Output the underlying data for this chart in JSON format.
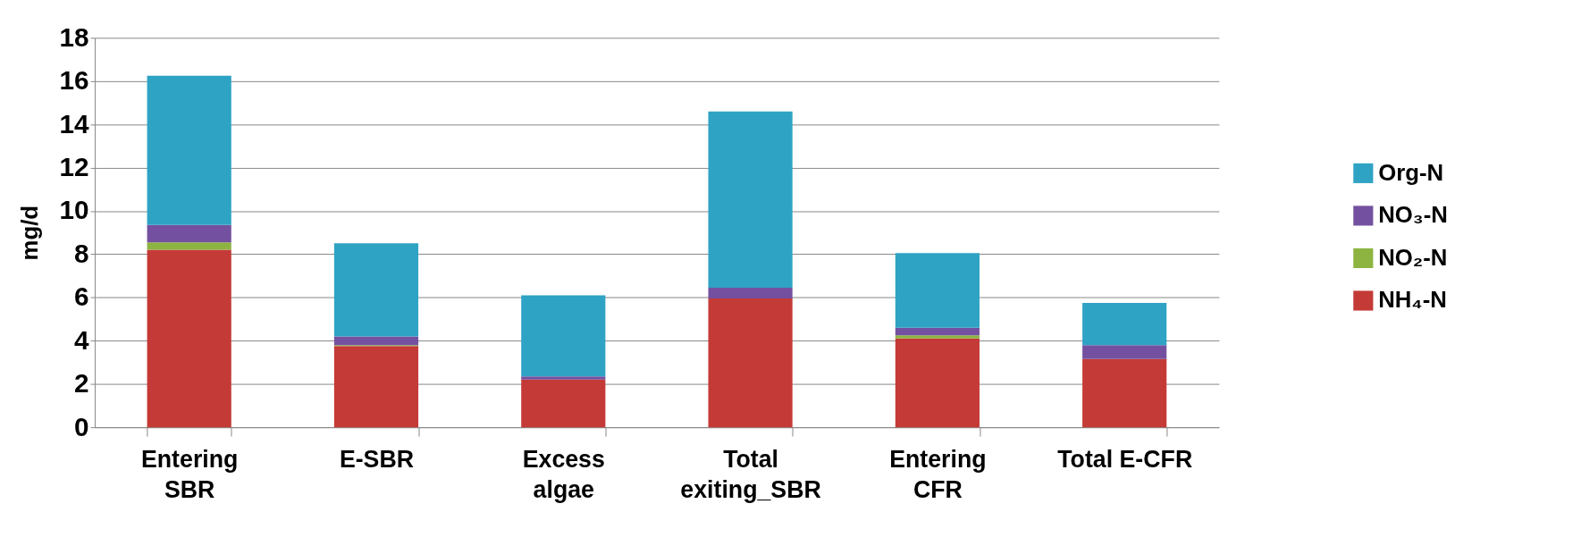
{
  "chart_data": {
    "type": "bar",
    "stacked": true,
    "ylabel": "mg/d",
    "categories": [
      "Entering\nSBR",
      "E-SBR",
      "Excess\nalgae",
      "Total\nexiting_SBR",
      "Entering\nCFR",
      "Total E-CFR"
    ],
    "series": [
      {
        "name": "NH₄-N",
        "color": "#c43a36",
        "values": [
          8.2,
          3.75,
          2.2,
          5.95,
          4.1,
          3.15
        ]
      },
      {
        "name": "NO₂-N",
        "color": "#8db441",
        "values": [
          0.35,
          0.05,
          0.0,
          0.0,
          0.15,
          0.0
        ]
      },
      {
        "name": "NO₃-N",
        "color": "#7451a0",
        "values": [
          0.8,
          0.4,
          0.15,
          0.5,
          0.35,
          0.65
        ]
      },
      {
        "name": "Org-N",
        "color": "#2fa3c4",
        "values": [
          6.9,
          4.3,
          3.75,
          8.15,
          3.45,
          1.95
        ]
      }
    ],
    "ylim": [
      0,
      18
    ],
    "yticks": [
      0,
      2,
      4,
      6,
      8,
      10,
      12,
      14,
      16,
      18
    ],
    "grid": "y",
    "legend": "right"
  }
}
